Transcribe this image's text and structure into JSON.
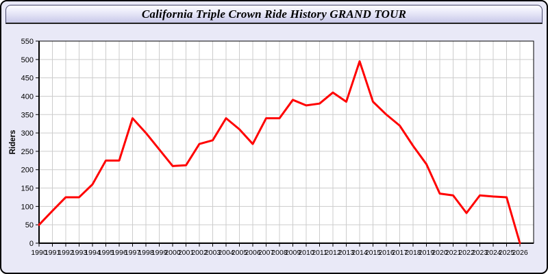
{
  "window": {
    "title": "California Triple Crown Ride History GRAND TOUR"
  },
  "chart_data": {
    "type": "line",
    "title": "California Triple Crown Ride History GRAND TOUR",
    "xlabel": "",
    "ylabel": "Riders",
    "ylim": [
      0,
      550
    ],
    "ytick_step": 50,
    "grid": true,
    "legend_position": "none",
    "line_color": "#ff0000",
    "x": [
      1990,
      1991,
      1992,
      1993,
      1994,
      1995,
      1996,
      1997,
      1998,
      1999,
      2000,
      2001,
      2002,
      2003,
      2004,
      2005,
      2006,
      2007,
      2008,
      2009,
      2010,
      2011,
      2012,
      2013,
      2014,
      2015,
      2016,
      2017,
      2018,
      2019,
      2020,
      2021,
      2022,
      2023,
      2024,
      2025,
      2026
    ],
    "values": [
      50,
      88,
      125,
      125,
      160,
      225,
      225,
      340,
      300,
      255,
      210,
      212,
      270,
      280,
      340,
      310,
      270,
      340,
      340,
      390,
      375,
      380,
      410,
      385,
      495,
      385,
      350,
      320,
      265,
      215,
      135,
      130,
      82,
      130,
      127,
      125,
      0
    ]
  },
  "colors": {
    "window_background": "#e9e9f7",
    "titlebar_gradient_top": "#ffffff",
    "titlebar_gradient_bottom": "#c9c9e9",
    "plot_background": "#ffffff",
    "gridline": "#cccccc",
    "axis": "#000000",
    "series_line": "#ff0000"
  }
}
